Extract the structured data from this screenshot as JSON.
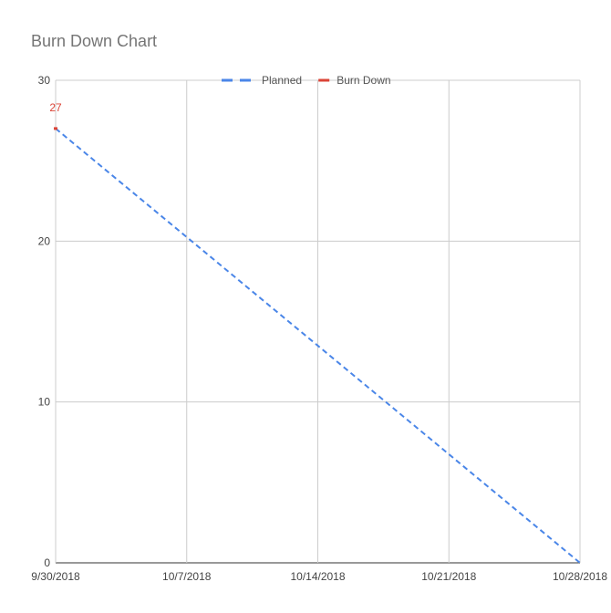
{
  "chart_data": {
    "type": "line",
    "title": "Burn Down Chart",
    "xlabel": "",
    "ylabel": "",
    "x": [
      "9/30/2018",
      "10/7/2018",
      "10/14/2018",
      "10/21/2018",
      "10/28/2018"
    ],
    "x_ticks": [
      "9/30/2018",
      "10/7/2018",
      "10/14/2018",
      "10/21/2018",
      "10/28/2018"
    ],
    "y_ticks": [
      0,
      10,
      20,
      30
    ],
    "ylim": [
      0,
      30
    ],
    "xlim": [
      "9/30/2018",
      "10/28/2018"
    ],
    "grid": true,
    "legend_position": "top",
    "series": [
      {
        "name": "Planned",
        "style": "dashed",
        "color": "#4a86e8",
        "points": [
          {
            "x": "9/30/2018",
            "y": 27
          },
          {
            "x": "10/28/2018",
            "y": 0
          }
        ]
      },
      {
        "name": "Burn Down",
        "style": "solid",
        "color": "#db4437",
        "points": [
          {
            "x": "9/30/2018",
            "y": 27
          }
        ],
        "data_labels": [
          "27"
        ]
      }
    ]
  }
}
